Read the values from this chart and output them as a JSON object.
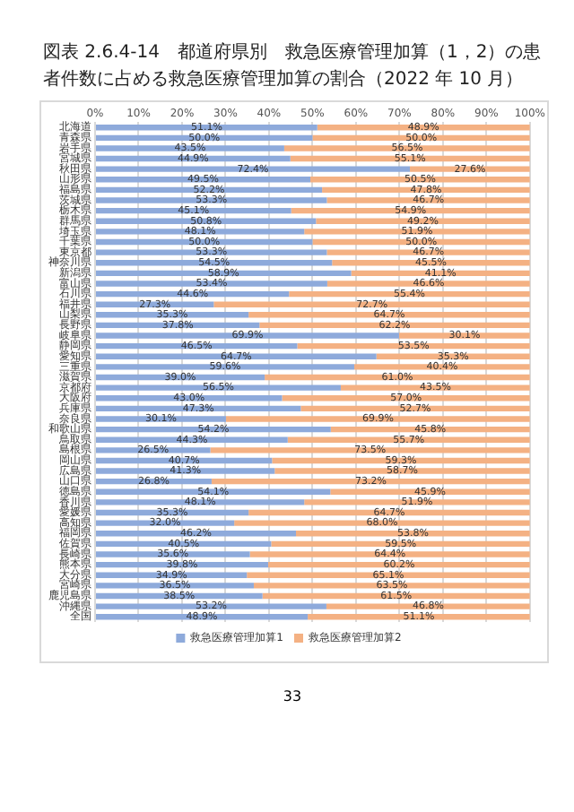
{
  "chart_data": {
    "type": "bar",
    "orientation": "horizontal",
    "stacked": true,
    "title": "図表 2.6.4-14　都道府県別　救急医療管理加算（1，2）の患者件数に占める救急医療管理加算の割合（2022 年 10 月）",
    "annotations": [
      "33"
    ],
    "categories": [
      "北海道",
      "青森県",
      "岩手県",
      "宮城県",
      "秋田県",
      "山形県",
      "福島県",
      "茨城県",
      "栃木県",
      "群馬県",
      "埼玉県",
      "千葉県",
      "東京都",
      "神奈川県",
      "新潟県",
      "富山県",
      "石川県",
      "福井県",
      "山梨県",
      "長野県",
      "岐阜県",
      "静岡県",
      "愛知県",
      "三重県",
      "滋賀県",
      "京都府",
      "大阪府",
      "兵庫県",
      "奈良県",
      "和歌山県",
      "鳥取県",
      "島根県",
      "岡山県",
      "広島県",
      "山口県",
      "徳島県",
      "香川県",
      "愛媛県",
      "高知県",
      "福岡県",
      "佐賀県",
      "長崎県",
      "熊本県",
      "大分県",
      "宮崎県",
      "鹿児島県",
      "沖縄県",
      "全国"
    ],
    "series": [
      {
        "name": "救急医療管理加算1",
        "color": "#8eaadb",
        "values": [
          51.1,
          50.0,
          43.5,
          44.9,
          72.4,
          49.5,
          52.2,
          53.3,
          45.1,
          50.8,
          48.1,
          50.0,
          53.3,
          54.5,
          58.9,
          53.4,
          44.6,
          27.3,
          35.3,
          37.8,
          69.9,
          46.5,
          64.7,
          59.6,
          39.0,
          56.5,
          43.0,
          47.3,
          30.1,
          54.2,
          44.3,
          26.5,
          40.7,
          41.3,
          26.8,
          54.1,
          48.1,
          35.3,
          32.0,
          46.2,
          40.5,
          35.6,
          39.8,
          34.9,
          36.5,
          38.5,
          53.2,
          48.9
        ],
        "value_labels": [
          "51.1%",
          "50.0%",
          "43.5%",
          "44.9%",
          "72.4%",
          "49.5%",
          "52.2%",
          "53.3%",
          "45.1%",
          "50.8%",
          "48.1%",
          "50.0%",
          "53.3%",
          "54.5%",
          "58.9%",
          "53.4%",
          "44.6%",
          "27.3%",
          "35.3%",
          "37.8%",
          "69.9%",
          "46.5%",
          "64.7%",
          "59.6%",
          "39.0%",
          "56.5%",
          "43.0%",
          "47.3%",
          "30.1%",
          "54.2%",
          "44.3%",
          "26.5%",
          "40.7%",
          "41.3%",
          "26.8%",
          "54.1%",
          "48.1%",
          "35.3%",
          "32.0%",
          "46.2%",
          "40.5%",
          "35.6%",
          "39.8%",
          "34.9%",
          "36.5%",
          "38.5%",
          "53.2%",
          "48.9%"
        ]
      },
      {
        "name": "救急医療管理加算2",
        "color": "#f4b183",
        "values": [
          48.9,
          50.0,
          56.5,
          55.1,
          27.6,
          50.5,
          47.8,
          46.7,
          54.9,
          49.2,
          51.9,
          50.0,
          46.7,
          45.5,
          41.1,
          46.6,
          55.4,
          72.7,
          64.7,
          62.2,
          30.1,
          53.5,
          35.3,
          40.4,
          61.0,
          43.5,
          57.0,
          52.7,
          69.9,
          45.8,
          55.7,
          73.5,
          59.3,
          58.7,
          73.2,
          45.9,
          51.9,
          64.7,
          68.0,
          53.8,
          59.5,
          64.4,
          60.2,
          65.1,
          63.5,
          61.5,
          46.8,
          51.1
        ],
        "value_labels": [
          "48.9%",
          "50.0%",
          "56.5%",
          "55.1%",
          "27.6%",
          "50.5%",
          "47.8%",
          "46.7%",
          "54.9%",
          "49.2%",
          "51.9%",
          "50.0%",
          "46.7%",
          "45.5%",
          "41.1%",
          "46.6%",
          "55.4%",
          "72.7%",
          "64.7%",
          "62.2%",
          "30.1%",
          "53.5%",
          "35.3%",
          "40.4%",
          "61.0%",
          "43.5%",
          "57.0%",
          "52.7%",
          "69.9%",
          "45.8%",
          "55.7%",
          "73.5%",
          "59.3%",
          "58.7%",
          "73.2%",
          "45.9%",
          "51.9%",
          "64.7%",
          "68.0%",
          "53.8%",
          "59.5%",
          "64.4%",
          "60.2%",
          "65.1%",
          "63.5%",
          "61.5%",
          "46.8%",
          "51.1%"
        ]
      }
    ],
    "xlim": [
      0,
      100
    ],
    "xticks": [
      {
        "value": 0,
        "label": "0%"
      },
      {
        "value": 10,
        "label": "10%"
      },
      {
        "value": 20,
        "label": "20%"
      },
      {
        "value": 30,
        "label": "30%"
      },
      {
        "value": 40,
        "label": "40%"
      },
      {
        "value": 50,
        "label": "50%"
      },
      {
        "value": 60,
        "label": "60%"
      },
      {
        "value": 70,
        "label": "70%"
      },
      {
        "value": 80,
        "label": "80%"
      },
      {
        "value": 90,
        "label": "90%"
      },
      {
        "value": 100,
        "label": "100%"
      }
    ],
    "grid": "x",
    "legend": "bottom"
  }
}
